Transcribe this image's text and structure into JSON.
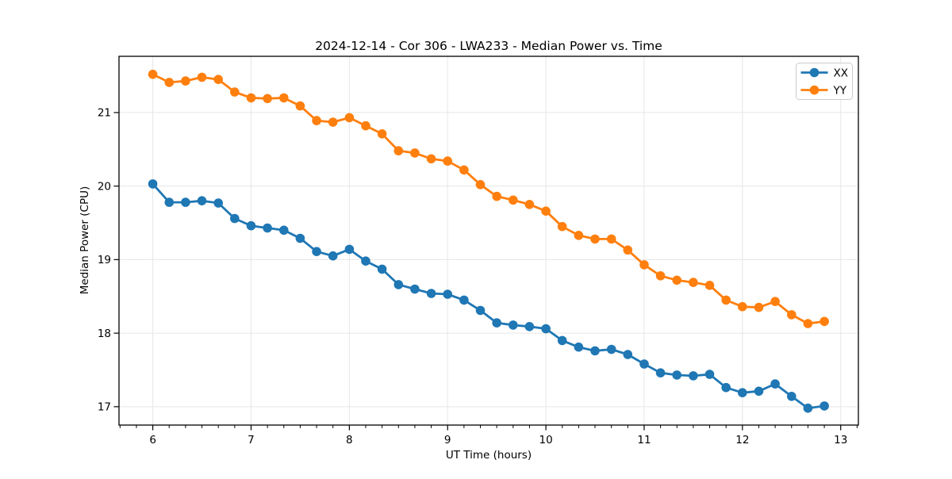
{
  "chart_data": {
    "type": "line",
    "title": "2024-12-14 - Cor 306 - LWA233 - Median Power vs. Time",
    "xlabel": "UT Time (hours)",
    "ylabel": "Median Power (CPU)",
    "xlim": [
      5.656,
      13.18
    ],
    "ylim": [
      16.75,
      21.765
    ],
    "x_ticks": [
      6,
      7,
      8,
      9,
      10,
      11,
      12,
      13
    ],
    "x_tick_labels": [
      "6",
      "7",
      "8",
      "9",
      "10",
      "11",
      "12",
      "13"
    ],
    "y_ticks": [
      17,
      18,
      19,
      20,
      21
    ],
    "y_tick_labels": [
      "17",
      "18",
      "19",
      "20",
      "21"
    ],
    "x_minor_tick_step": 0.16667,
    "grid": true,
    "grid_color": "#e6e6e6",
    "legend_position": "upper right",
    "x": [
      6.0,
      6.1667,
      6.3333,
      6.5,
      6.6667,
      6.8333,
      7.0,
      7.1667,
      7.3333,
      7.5,
      7.6667,
      7.8333,
      8.0,
      8.1667,
      8.3333,
      8.5,
      8.6667,
      8.8333,
      9.0,
      9.1667,
      9.3333,
      9.5,
      9.6667,
      9.8333,
      10.0,
      10.1667,
      10.3333,
      10.5,
      10.6667,
      10.8333,
      11.0,
      11.1667,
      11.3333,
      11.5,
      11.6667,
      11.8333,
      12.0,
      12.1667,
      12.3333,
      12.5,
      12.6667,
      12.8333
    ],
    "series": [
      {
        "name": "XX",
        "color": "#1f77b4",
        "marker": "circle",
        "values": [
          20.03,
          19.78,
          19.78,
          19.8,
          19.77,
          19.56,
          19.46,
          19.43,
          19.4,
          19.29,
          19.11,
          19.05,
          19.14,
          18.98,
          18.87,
          18.66,
          18.6,
          18.54,
          18.53,
          18.45,
          18.31,
          18.14,
          18.11,
          18.09,
          18.06,
          17.9,
          17.81,
          17.76,
          17.78,
          17.71,
          17.58,
          17.46,
          17.43,
          17.42,
          17.44,
          17.26,
          17.19,
          17.21,
          17.31,
          17.14,
          16.98,
          17.01
        ]
      },
      {
        "name": "YY",
        "color": "#ff7f0e",
        "marker": "circle",
        "values": [
          21.52,
          21.41,
          21.43,
          21.48,
          21.45,
          21.28,
          21.2,
          21.19,
          21.2,
          21.09,
          20.89,
          20.87,
          20.93,
          20.82,
          20.71,
          20.48,
          20.45,
          20.37,
          20.34,
          20.22,
          20.02,
          19.86,
          19.81,
          19.75,
          19.66,
          19.45,
          19.33,
          19.28,
          19.28,
          19.13,
          18.93,
          18.78,
          18.72,
          18.69,
          18.65,
          18.45,
          18.36,
          18.35,
          18.43,
          18.25,
          18.13,
          18.16
        ]
      }
    ]
  }
}
